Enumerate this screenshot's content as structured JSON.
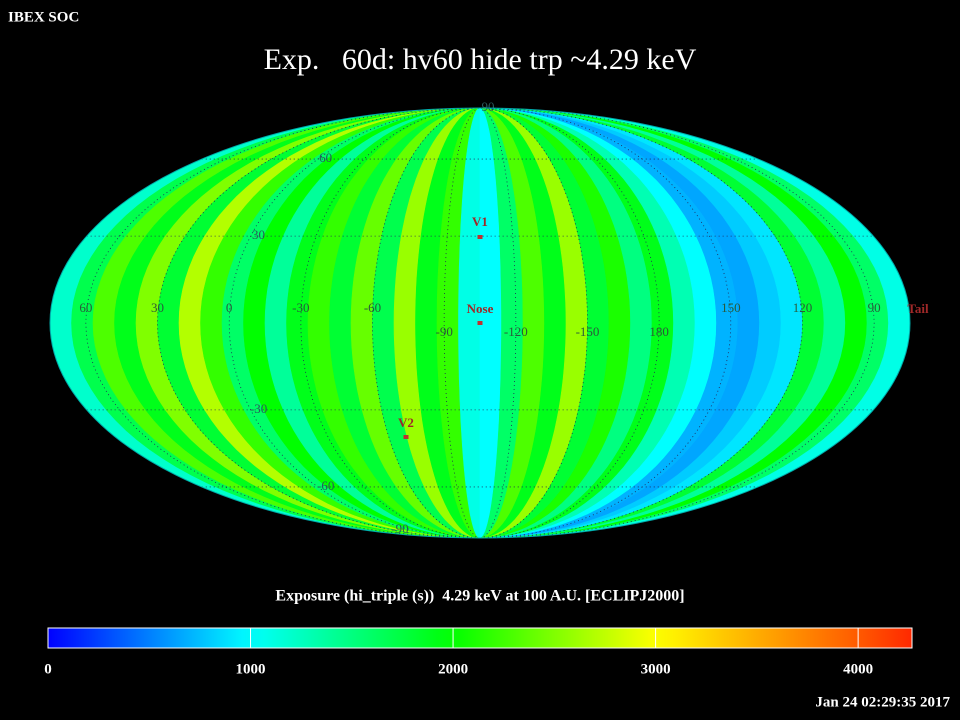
{
  "chart_data": {
    "type": "map",
    "header": "IBEX SOC",
    "title": "Exp.   60d: hv60 hide trp ~4.29 keV",
    "colorbar_title": "Exposure (hi_triple (s))  4.29 keV at 100 A.U. [ECLIPJ2000]",
    "timestamp": "Jan 24 02:29:35 2017",
    "center_lon": 255,
    "lon_ticks": [
      60,
      30,
      0,
      -30,
      -60,
      -90,
      -120,
      -150,
      180,
      150,
      120,
      90
    ],
    "lat_ticks": [
      90,
      60,
      30,
      -30,
      -60,
      -90
    ],
    "markers": [
      "V1",
      "Nose",
      "V2",
      "Tail"
    ],
    "map_values": [
      1200,
      1700,
      2300,
      1900,
      2500,
      1800,
      2700,
      2200,
      1600,
      2000,
      1400,
      1900,
      2200,
      1800,
      2400,
      1700,
      2600,
      1900,
      2200,
      1100,
      1000,
      1600,
      2300,
      1900,
      2600,
      1800,
      2100,
      1500,
      1900,
      1300,
      1000,
      700,
      650,
      800,
      900,
      1800,
      1400,
      2000,
      1600,
      1100
    ],
    "clim": [
      0,
      4266
    ],
    "cticks": [
      0,
      1000,
      2000,
      3000,
      4000
    ]
  }
}
